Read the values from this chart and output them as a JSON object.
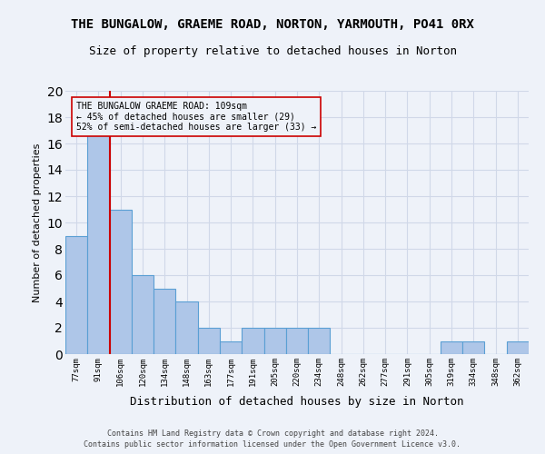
{
  "title": "THE BUNGALOW, GRAEME ROAD, NORTON, YARMOUTH, PO41 0RX",
  "subtitle": "Size of property relative to detached houses in Norton",
  "xlabel": "Distribution of detached houses by size in Norton",
  "ylabel": "Number of detached properties",
  "footnote1": "Contains HM Land Registry data © Crown copyright and database right 2024.",
  "footnote2": "Contains public sector information licensed under the Open Government Licence v3.0.",
  "bin_labels": [
    "77sqm",
    "91sqm",
    "106sqm",
    "120sqm",
    "134sqm",
    "148sqm",
    "163sqm",
    "177sqm",
    "191sqm",
    "205sqm",
    "220sqm",
    "234sqm",
    "248sqm",
    "262sqm",
    "277sqm",
    "291sqm",
    "305sqm",
    "319sqm",
    "334sqm",
    "348sqm",
    "362sqm"
  ],
  "bar_values": [
    9,
    17,
    11,
    6,
    5,
    4,
    2,
    1,
    2,
    2,
    2,
    2,
    0,
    0,
    0,
    0,
    0,
    1,
    1,
    0,
    1
  ],
  "bar_color": "#aec6e8",
  "bar_edge_color": "#5a9fd4",
  "grid_color": "#d0d8e8",
  "vline_color": "#cc0000",
  "annotation_text": "THE BUNGALOW GRAEME ROAD: 109sqm\n← 45% of detached houses are smaller (29)\n52% of semi-detached houses are larger (33) →",
  "ylim": [
    0,
    20
  ],
  "yticks": [
    0,
    2,
    4,
    6,
    8,
    10,
    12,
    14,
    16,
    18,
    20
  ],
  "background_color": "#eef2f9",
  "title_fontsize": 10,
  "subtitle_fontsize": 9,
  "ylabel_fontsize": 8,
  "xlabel_fontsize": 9
}
